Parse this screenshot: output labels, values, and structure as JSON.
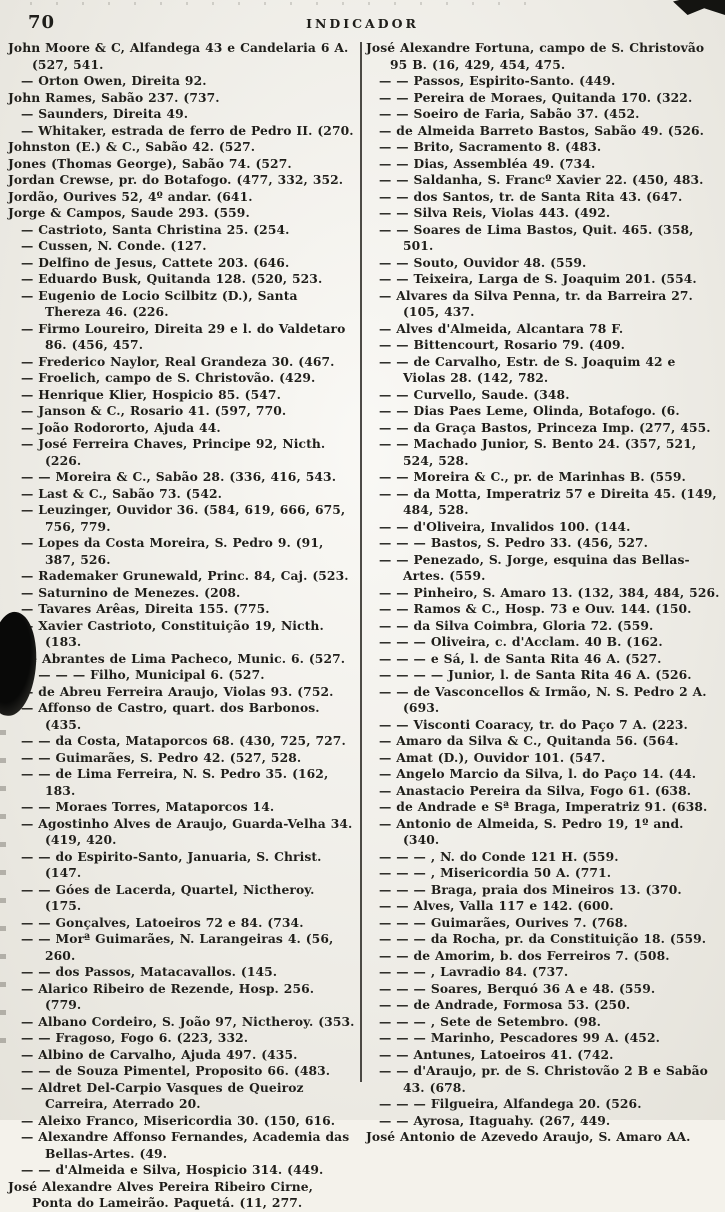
{
  "page": {
    "number": "70",
    "title": "INDICADOR"
  },
  "columns": {
    "left": {
      "entries": [
        "John Moore & C, Alfandega 43 e Candelaria 6 A. (527, 541.",
        "— Orton Owen, Direita 92.",
        "John Rames, Sabão 237. (737.",
        "— Saunders, Direita 49.",
        "— Whitaker, estrada de ferro de Pedro II. (270.",
        "Johnston (E.) & C., Sabão 42. (527.",
        "Jones (Thomas George), Sabão 74. (527.",
        "Jordan Crewse, pr. do Botafogo. (477, 332, 352.",
        "Jordão, Ourives 52, 4º andar. (641.",
        "Jorge & Campos, Saude 293. (559.",
        "— Castrioto, Santa Christina 25. (254.",
        "— Cussen, N. Conde. (127.",
        "— Delfino de Jesus, Cattete 203. (646.",
        "— Eduardo Busk, Quitanda 128. (520, 523.",
        "— Eugenio de Locio Scilbitz (D.), Santa Thereza 46. (226.",
        "— Firmo Loureiro, Direita 29 e l. do Valdetaro 86. (456, 457.",
        "— Frederico Naylor, Real Grandeza 30. (467.",
        "— Froelich, campo de S. Christovão. (429.",
        "— Henrique Klier, Hospicio 85. (547.",
        "— Janson & C., Rosario 41. (597, 770.",
        "— João Rodororto, Ajuda 44.",
        "— José Ferreira Chaves, Principe 92, Nicth. (226.",
        "— — Moreira & C., Sabão 28. (336, 416, 543.",
        "— Last & C., Sabão 73. (542.",
        "— Leuzinger, Ouvidor 36. (584, 619, 666, 675, 756, 779.",
        "— Lopes da Costa Moreira, S. Pedro 9. (91, 387, 526.",
        "— Rademaker Grunewald, Princ. 84, Caj. (523.",
        "— Saturnino de Menezes. (208.",
        "— Tavares Arêas, Direita 155. (775.",
        "— Xavier Castrioto, Constituição 19, Nicth. (183.",
        "José Abrantes de Lima Pacheco, Munic. 6. (527.",
        "— — — — Filho, Municipal 6. (527.",
        "— de Abreu Ferreira Araujo, Violas 93. (752.",
        "— Affonso de Castro, quart. dos Barbonos. (435.",
        "— — da Costa, Mataporcos 68. (430, 725, 727.",
        "— — Guimarães, S. Pedro 42. (527, 528.",
        "— — de Lima Ferreira, N. S. Pedro 35. (162, 183.",
        "— — Moraes Torres, Mataporcos 14.",
        "— Agostinho Alves de Araujo, Guarda-Velha 34. (419, 420.",
        "— — do Espirito-Santo, Januaria, S. Christ. (147.",
        "— — Góes de Lacerda, Quartel, Nictheroy. (175.",
        "— — Gonçalves, Latoeiros 72 e 84. (734.",
        "— — Morª Guimarães, N. Larangeiras 4. (56, 260.",
        "— — dos Passos, Matacavallos. (145.",
        "— Alarico Ribeiro de Rezende, Hosp. 256. (779.",
        "— Albano Cordeiro, S. João 97, Nictheroy. (353.",
        "— — Fragoso, Fogo 6. (223, 332.",
        "— Albino de Carvalho, Ajuda 497. (435.",
        "— — de Souza Pimentel, Proposito 66. (483.",
        "— Aldret Del-Carpio Vasques de Queiroz Carreira, Aterrado 20.",
        "— Aleixo Franco, Misericordia 30. (150, 616.",
        "— Alexandre Affonso Fernandes, Academia das Bellas-Artes. (49.",
        "— — d'Almeida e Silva, Hospicio 314. (449.",
        "José Alexandre Alves Pereira Ribeiro Cirne, Ponta do Lameirão. Paquetá. (11, 277."
      ]
    },
    "right": {
      "entries": [
        "José Alexandre Fortuna, campo de S. Christovão 95 B. (16, 429, 454, 475.",
        "— — Passos, Espirito-Santo. (449.",
        "— — Pereira de Moraes, Quitanda 170. (322.",
        "— — Soeiro de Faria, Sabão 37. (452.",
        "— de Almeida Barreto Bastos, Sabão 49. (526.",
        "— — Brito, Sacramento 8. (483.",
        "— — Dias, Assembléa 49. (734.",
        "— — Saldanha, S. Francº Xavier 22. (450, 483.",
        "— — dos Santos, tr. de Santa Rita 43. (647.",
        "— — Silva Reis, Violas 443. (492.",
        "— — Soares de Lima Bastos, Quit. 465. (358, 501.",
        "— — Souto, Ouvidor 48. (559.",
        "— — Teixeira, Larga de S. Joaquim 201. (554.",
        "— Alvares da Silva Penna, tr. da Barreira 27. (105, 437.",
        "— Alves d'Almeida, Alcantara 78 F.",
        "— — Bittencourt, Rosario 79. (409.",
        "— — de Carvalho, Estr. de S. Joaquim 42 e Violas 28. (142, 782.",
        "— — Curvello, Saude. (348.",
        "— — Dias Paes Leme, Olinda, Botafogo. (6.",
        "— — da Graça Bastos, Princeza Imp. (277, 455.",
        "— — Machado Junior, S. Bento 24. (357, 521, 524, 528.",
        "— — Moreira & C., pr. de Marinhas B. (559.",
        "— — da Motta, Imperatriz 57 e Direita 45. (149, 484, 528.",
        "— — d'Oliveira, Invalidos 100. (144.",
        "— — — Bastos, S. Pedro 33. (456, 527.",
        "— — Penezado, S. Jorge, esquina das Bellas-Artes. (559.",
        "— — Pinheiro, S. Amaro 13. (132, 384, 484, 526.",
        "— — Ramos & C., Hosp. 73 e Ouv. 144. (150.",
        "— — da Silva Coimbra, Gloria 72. (559.",
        "— — — Oliveira, c. d'Acclam. 40 B. (162.",
        "— — — e Sá, l. de Santa Rita 46 A. (527.",
        "— — — — Junior, l. de Santa Rita 46 A. (526.",
        "— — de Vasconcellos & Irmão, N. S. Pedro 2 A. (693.",
        "— — Visconti Coaracy, tr. do Paço 7 A. (223.",
        "— Amaro da Silva & C., Quitanda 56. (564.",
        "— Amat (D.), Ouvidor 101. (547.",
        "— Angelo Marcio da Silva, l. do Paço 14. (44.",
        "— Anastacio Pereira da Silva, Fogo 61. (638.",
        "— de Andrade e Sª Braga, Imperatriz 91. (638.",
        "— Antonio de Almeida, S. Pedro 19, 1º and. (340.",
        "— — — , N. do Conde 121 H. (559.",
        "— — — , Misericordia 50 A. (771.",
        "— — — Braga, praia dos Mineiros 13. (370.",
        "— — Alves, Valla 117 e 142. (600.",
        "— — — Guimarães, Ourives 7. (768.",
        "— — — da Rocha, pr. da Constituição 18. (559.",
        "— — de Amorim, b. dos Ferreiros 7. (508.",
        "— — — , Lavradio 84. (737.",
        "— — — Soares, Berquó 36 A e 48. (559.",
        "— — de Andrade, Formosa 53. (250.",
        "— — — , Sete de Setembro. (98.",
        "— — — Marinho, Pescadores 99 A. (452.",
        "— — Antunes, Latoeiros 41. (742.",
        "— — d'Araujo, pr. de S. Christovão 2 B e Sabão 43. (678.",
        "— — — Filgueira, Alfandega 20. (526.",
        "— — Ayrosa, Itaguahy. (267, 449.",
        "José Antonio de Azevedo Araujo, S. Amaro AA."
      ]
    }
  }
}
